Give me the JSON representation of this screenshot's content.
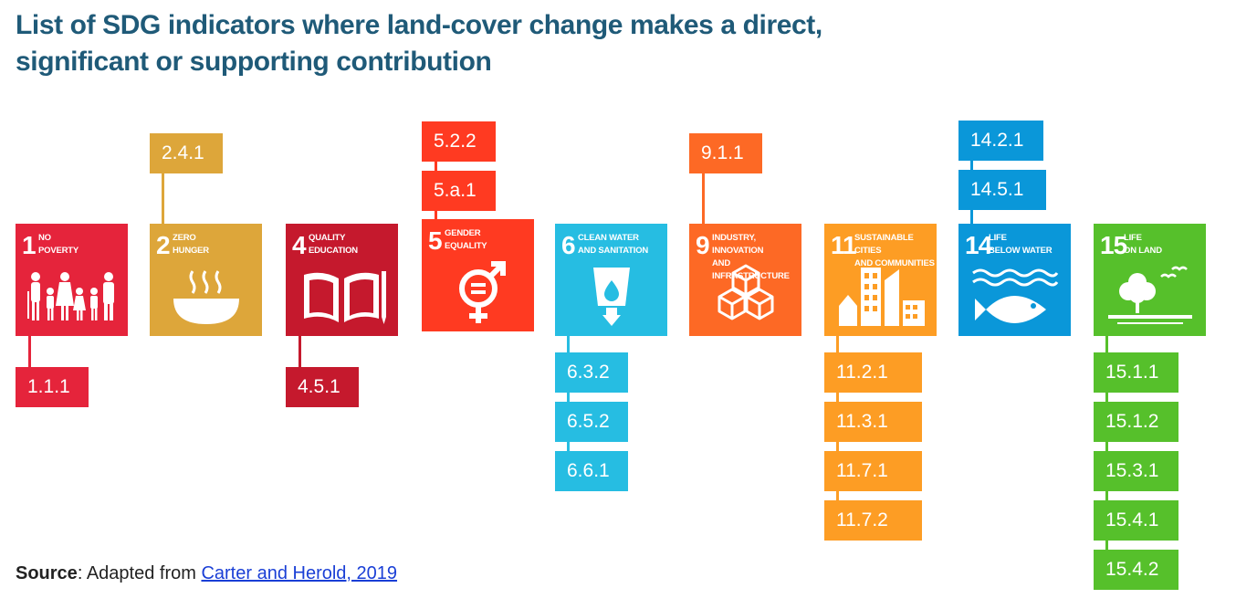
{
  "title": "List of SDG indicators where land-cover change makes a direct, significant or supporting contribution",
  "source": {
    "label": "Source",
    "text": ": Adapted from ",
    "link_text": "Carter and Herold, 2019"
  },
  "goals": [
    {
      "num": "1",
      "name": "NO\nPOVERTY",
      "color": "#e5243b",
      "icon": "people-icon",
      "indicators": [
        "1.1.1"
      ]
    },
    {
      "num": "2",
      "name": "ZERO\nHUNGER",
      "color": "#dda63a",
      "icon": "bowl-icon",
      "indicators": [
        "2.4.1"
      ]
    },
    {
      "num": "4",
      "name": "QUALITY\nEDUCATION",
      "color": "#c5192d",
      "icon": "book-icon",
      "indicators": [
        "4.5.1"
      ]
    },
    {
      "num": "5",
      "name": "GENDER\nEQUALITY",
      "color": "#ff3a21",
      "icon": "gender-equality-icon",
      "indicators": [
        "5.2.2",
        "5.a.1"
      ]
    },
    {
      "num": "6",
      "name": "CLEAN WATER\nAND SANITATION",
      "color": "#26bde2",
      "icon": "water-glass-icon",
      "indicators": [
        "6.3.2",
        "6.5.2",
        "6.6.1"
      ]
    },
    {
      "num": "9",
      "name": "INDUSTRY, INNOVATION\nAND INFRASTRUCTURE",
      "color": "#fd6925",
      "icon": "cubes-icon",
      "indicators": [
        "9.1.1"
      ]
    },
    {
      "num": "11",
      "name": "SUSTAINABLE CITIES\nAND COMMUNITIES",
      "color": "#fd9d24",
      "icon": "city-icon",
      "indicators": [
        "11.2.1",
        "11.3.1",
        "11.7.1",
        "11.7.2"
      ]
    },
    {
      "num": "14",
      "name": "LIFE\nBELOW WATER",
      "color": "#0a97d9",
      "icon": "fish-icon",
      "indicators": [
        "14.2.1",
        "14.5.1"
      ]
    },
    {
      "num": "15",
      "name": "LIFE\nON LAND",
      "color": "#56c02b",
      "icon": "tree-icon",
      "indicators": [
        "15.1.1",
        "15.1.2",
        "15.3.1",
        "15.4.1",
        "15.4.2"
      ]
    }
  ]
}
